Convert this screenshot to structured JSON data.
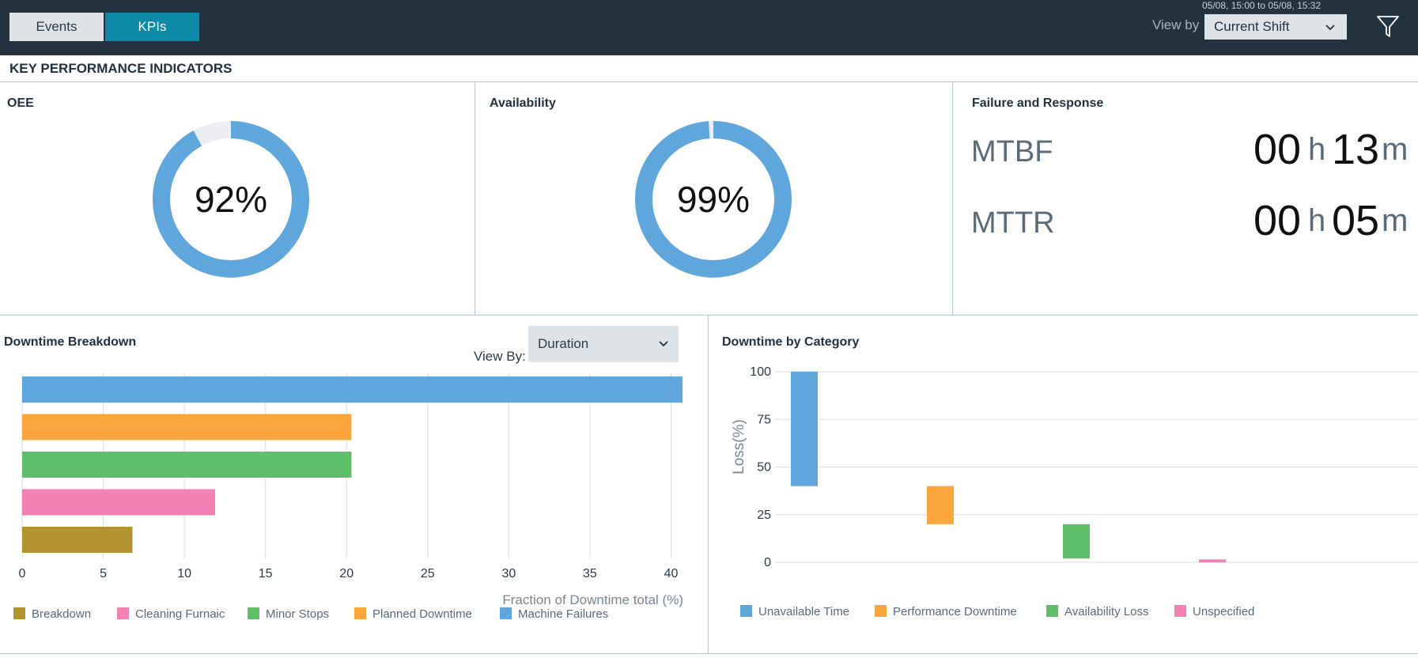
{
  "header": {
    "tabs": [
      {
        "label": "Events",
        "active": false
      },
      {
        "label": "KPIs",
        "active": true
      }
    ],
    "date_range": "05/08, 15:00 to 05/08, 15:32",
    "view_by_label": "View by",
    "view_by_value": "Current Shift",
    "filter_icon": "filter-icon"
  },
  "kpi": {
    "section_title": "KEY PERFORMANCE INDICATORS",
    "oee": {
      "title": "OEE",
      "value": 92,
      "label": "92%"
    },
    "availability": {
      "title": "Availability",
      "value": 99,
      "label": "99%"
    },
    "failure_response": {
      "title": "Failure and Response",
      "mtbf": {
        "label": "MTBF",
        "hours": "00",
        "h_unit": "h",
        "minutes": "13",
        "m_unit": "m"
      },
      "mttr": {
        "label": "MTTR",
        "hours": "00",
        "h_unit": "h",
        "minutes": "05",
        "m_unit": "m"
      }
    }
  },
  "colors": {
    "blue": "#5fa6dc",
    "orange": "#fba63c",
    "green": "#5ebf68",
    "pink": "#f282b4",
    "olive": "#b19430",
    "donut_track": "#eceef3"
  },
  "downtime_breakdown": {
    "title": "Downtime Breakdown",
    "view_by_label": "View By:",
    "view_by_value": "Duration"
  },
  "downtime_category": {
    "title": "Downtime by Category"
  },
  "chart_data": [
    {
      "type": "bar",
      "orientation": "horizontal",
      "categories": [
        "Machine Failures",
        "Planned Downtime",
        "Minor Stops",
        "Cleaning Furnaic",
        "Breakdown"
      ],
      "values": [
        40.7,
        20.3,
        20.3,
        11.9,
        6.8
      ],
      "colors": [
        "#5fa6dc",
        "#fba63c",
        "#5ebf68",
        "#f282b4",
        "#b19430"
      ],
      "xlabel": "Fraction of Downtime total (%)",
      "xlim": [
        0,
        41
      ],
      "xticks": [
        "0",
        "5",
        "10",
        "15",
        "20",
        "25",
        "30",
        "35",
        "40"
      ],
      "grid": true,
      "legend": [
        {
          "name": "Breakdown",
          "color": "#b19430"
        },
        {
          "name": "Cleaning Furnaic",
          "color": "#f282b4"
        },
        {
          "name": "Minor Stops",
          "color": "#5ebf68"
        },
        {
          "name": "Planned Downtime",
          "color": "#fba63c"
        },
        {
          "name": "Machine Failures",
          "color": "#5fa6dc"
        }
      ],
      "legend_position": "bottom"
    },
    {
      "type": "bar",
      "subtype": "waterfall",
      "categories": [
        "Unavailable Time",
        "Performance Downtime",
        "Availability Loss",
        "Unspecified"
      ],
      "ranges": [
        [
          40,
          100
        ],
        [
          20,
          40
        ],
        [
          2,
          20
        ],
        [
          0,
          1.5
        ]
      ],
      "colors": [
        "#5fa6dc",
        "#fba63c",
        "#5ebf68",
        "#f282b4"
      ],
      "ylabel": "Loss(%)",
      "ylim": [
        0,
        100
      ],
      "yticks": [
        "0",
        "25",
        "50",
        "75",
        "100"
      ],
      "grid": true,
      "legend": [
        {
          "name": "Unavailable Time",
          "color": "#5fa6dc"
        },
        {
          "name": "Performance Downtime",
          "color": "#fba63c"
        },
        {
          "name": "Availability Loss",
          "color": "#5ebf68"
        },
        {
          "name": "Unspecified",
          "color": "#f282b4"
        }
      ],
      "legend_position": "bottom"
    }
  ]
}
